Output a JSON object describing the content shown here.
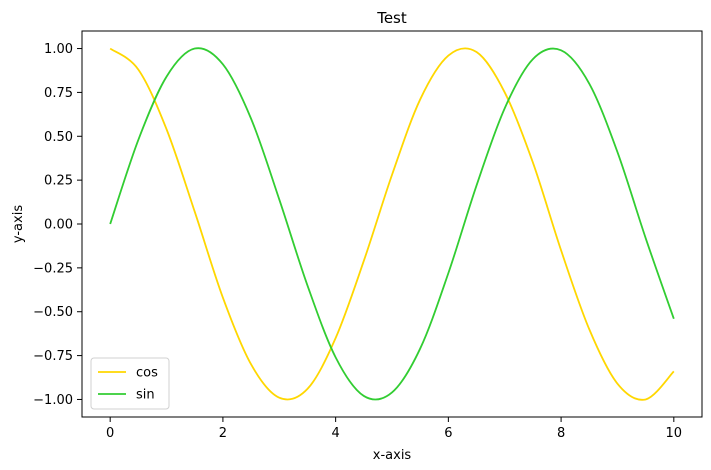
{
  "chart_data": {
    "type": "line",
    "title": "Test",
    "xlabel": "x-axis",
    "ylabel": "y-axis",
    "xlim": [
      -0.5,
      10.5
    ],
    "ylim": [
      -1.1,
      1.1
    ],
    "xticks": [
      0,
      2,
      4,
      6,
      8,
      10
    ],
    "xtick_labels": [
      "0",
      "2",
      "4",
      "6",
      "8",
      "10"
    ],
    "yticks": [
      1.0,
      0.75,
      0.5,
      0.25,
      0.0,
      -0.25,
      -0.5,
      -0.75,
      -1.0
    ],
    "ytick_labels": [
      "1.00",
      "0.75",
      "0.50",
      "0.25",
      "0.00",
      "−0.25",
      "−0.50",
      "−0.75",
      "−1.00"
    ],
    "grid": false,
    "legend_position": "bottom-left",
    "series": [
      {
        "name": "cos",
        "color": "#ffd700",
        "x": [
          0,
          0.5,
          1,
          1.5,
          2,
          2.5,
          3,
          3.5,
          4,
          4.5,
          5,
          5.5,
          6,
          6.5,
          7,
          7.5,
          8,
          8.5,
          9,
          9.5,
          10
        ],
        "y": [
          1.0,
          0.88,
          0.54,
          0.07,
          -0.42,
          -0.8,
          -0.99,
          -0.94,
          -0.65,
          -0.21,
          0.28,
          0.71,
          0.96,
          0.98,
          0.75,
          0.35,
          -0.15,
          -0.6,
          -0.91,
          -1.0,
          -0.84
        ]
      },
      {
        "name": "sin",
        "color": "#32cd32",
        "x": [
          0,
          0.5,
          1,
          1.5,
          2,
          2.5,
          3,
          3.5,
          4,
          4.5,
          5,
          5.5,
          6,
          6.5,
          7,
          7.5,
          8,
          8.5,
          9,
          9.5,
          10
        ],
        "y": [
          0.0,
          0.48,
          0.84,
          1.0,
          0.91,
          0.6,
          0.14,
          -0.35,
          -0.76,
          -0.98,
          -0.96,
          -0.71,
          -0.28,
          0.22,
          0.66,
          0.94,
          0.99,
          0.8,
          0.41,
          -0.08,
          -0.54
        ]
      }
    ]
  }
}
